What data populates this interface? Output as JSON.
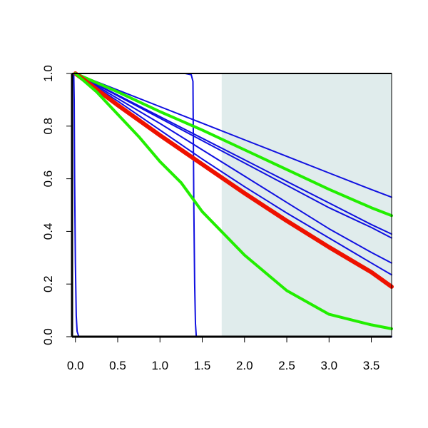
{
  "chart_data": {
    "type": "line",
    "title": "",
    "xlabel": "",
    "ylabel": "",
    "xlim": [
      -0.04,
      3.74
    ],
    "ylim": [
      0.0,
      1.0
    ],
    "grid": false,
    "x_ticks": [
      0.0,
      0.5,
      1.0,
      1.5,
      2.0,
      2.5,
      3.0,
      3.5
    ],
    "x_tick_labels": [
      "0.0",
      "0.5",
      "1.0",
      "1.5",
      "2.0",
      "2.5",
      "3.0",
      "3.5"
    ],
    "y_ticks": [
      0.0,
      0.2,
      0.4,
      0.6,
      0.8,
      1.0
    ],
    "y_tick_labels": [
      "0.0",
      "0.2",
      "0.4",
      "0.6",
      "0.8",
      "1.0"
    ],
    "shaded_region": {
      "x_from": 1.73,
      "x_to": 3.74,
      "color": "#e0ecec"
    },
    "colors": {
      "blue": "#1010e0",
      "green": "#22ee00",
      "red": "#ee1100",
      "axis": "#000000"
    },
    "series": [
      {
        "color": "blue",
        "width": 2,
        "points": [
          [
            -0.02,
            1.0
          ],
          [
            -0.015,
            0.9
          ],
          [
            -0.01,
            0.6
          ],
          [
            0.0,
            0.28
          ],
          [
            0.01,
            0.08
          ],
          [
            0.02,
            0.02
          ],
          [
            0.04,
            0.0
          ],
          [
            3.74,
            0.0
          ]
        ]
      },
      {
        "color": "blue",
        "width": 2,
        "points": [
          [
            -0.02,
            1.0
          ],
          [
            1.3,
            1.0
          ],
          [
            1.37,
            0.995
          ],
          [
            1.39,
            0.97
          ],
          [
            1.4,
            0.5
          ],
          [
            1.41,
            0.2
          ],
          [
            1.42,
            0.05
          ],
          [
            1.43,
            0.0
          ],
          [
            3.74,
            0.0
          ]
        ]
      },
      {
        "color": "blue",
        "width": 2,
        "points": [
          [
            0.0,
            1.0
          ],
          [
            0.5,
            0.937
          ],
          [
            1.0,
            0.874
          ],
          [
            1.5,
            0.811
          ],
          [
            2.0,
            0.748
          ],
          [
            2.5,
            0.685
          ],
          [
            3.0,
            0.622
          ],
          [
            3.5,
            0.559
          ],
          [
            3.74,
            0.53
          ]
        ]
      },
      {
        "color": "blue",
        "width": 2,
        "points": [
          [
            0.0,
            1.0
          ],
          [
            0.5,
            0.918
          ],
          [
            1.0,
            0.836
          ],
          [
            1.5,
            0.754
          ],
          [
            2.0,
            0.672
          ],
          [
            2.5,
            0.59
          ],
          [
            3.0,
            0.508
          ],
          [
            3.5,
            0.426
          ],
          [
            3.74,
            0.39
          ]
        ]
      },
      {
        "color": "blue",
        "width": 2,
        "points": [
          [
            0.0,
            1.0
          ],
          [
            0.5,
            0.915
          ],
          [
            1.0,
            0.83
          ],
          [
            1.5,
            0.745
          ],
          [
            2.0,
            0.66
          ],
          [
            2.5,
            0.575
          ],
          [
            3.0,
            0.49
          ],
          [
            3.5,
            0.415
          ],
          [
            3.74,
            0.375
          ]
        ]
      },
      {
        "color": "blue",
        "width": 2,
        "points": [
          [
            0.0,
            1.0
          ],
          [
            0.5,
            0.905
          ],
          [
            1.0,
            0.81
          ],
          [
            1.5,
            0.71
          ],
          [
            2.0,
            0.61
          ],
          [
            2.5,
            0.51
          ],
          [
            3.0,
            0.41
          ],
          [
            3.5,
            0.32
          ],
          [
            3.74,
            0.28
          ]
        ]
      },
      {
        "color": "blue",
        "width": 2,
        "points": [
          [
            0.0,
            1.0
          ],
          [
            0.5,
            0.895
          ],
          [
            1.0,
            0.785
          ],
          [
            1.5,
            0.675
          ],
          [
            2.0,
            0.57
          ],
          [
            2.5,
            0.47
          ],
          [
            3.0,
            0.375
          ],
          [
            3.5,
            0.28
          ],
          [
            3.74,
            0.235
          ]
        ]
      },
      {
        "color": "green",
        "width": 4,
        "points": [
          [
            0.0,
            1.0
          ],
          [
            0.5,
            0.93
          ],
          [
            1.0,
            0.855
          ],
          [
            1.5,
            0.785
          ],
          [
            2.0,
            0.71
          ],
          [
            2.5,
            0.635
          ],
          [
            3.0,
            0.56
          ],
          [
            3.5,
            0.49
          ],
          [
            3.74,
            0.46
          ]
        ]
      },
      {
        "color": "red",
        "width": 6,
        "points": [
          [
            0.0,
            1.0
          ],
          [
            0.5,
            0.88
          ],
          [
            1.0,
            0.765
          ],
          [
            1.5,
            0.655
          ],
          [
            2.0,
            0.545
          ],
          [
            2.5,
            0.44
          ],
          [
            3.0,
            0.34
          ],
          [
            3.5,
            0.245
          ],
          [
            3.74,
            0.19
          ]
        ]
      },
      {
        "color": "green",
        "width": 4,
        "points": [
          [
            0.0,
            1.0
          ],
          [
            0.25,
            0.93
          ],
          [
            0.5,
            0.845
          ],
          [
            0.75,
            0.76
          ],
          [
            1.0,
            0.665
          ],
          [
            1.25,
            0.585
          ],
          [
            1.5,
            0.475
          ],
          [
            2.0,
            0.31
          ],
          [
            2.5,
            0.175
          ],
          [
            3.0,
            0.085
          ],
          [
            3.5,
            0.045
          ],
          [
            3.74,
            0.03
          ]
        ]
      }
    ]
  }
}
